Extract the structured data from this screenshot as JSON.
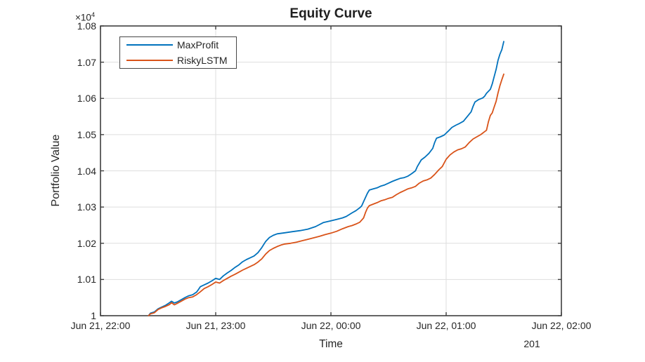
{
  "figure": {
    "background_color": "#ffffff",
    "axis_color": "#3f3f3f",
    "grid_color": "#dedede",
    "text_color": "#262626"
  },
  "chart_data": {
    "type": "line",
    "title": "Equity Curve",
    "xlabel": "Time",
    "ylabel": "Portfolio Value",
    "y_exponent_label": {
      "base": "×10",
      "power": "4"
    },
    "x_axis_secondary_label": "201",
    "x_unit": "minutes after Jun 21, 22:00",
    "xlim": [
      0,
      240
    ],
    "ylim": [
      10000,
      10800
    ],
    "grid": true,
    "x_ticks": {
      "positions": [
        0,
        60,
        120,
        180,
        240
      ],
      "labels": [
        "Jun 21, 22:00",
        "Jun 21, 23:00",
        "Jun 22, 00:00",
        "Jun 22, 01:00",
        "Jun 22, 02:00"
      ]
    },
    "y_ticks": {
      "values": [
        10000,
        10100,
        10200,
        10300,
        10400,
        10500,
        10600,
        10700,
        10800
      ],
      "labels": [
        "1",
        "1.01",
        "1.02",
        "1.03",
        "1.04",
        "1.05",
        "1.06",
        "1.07",
        "1.08"
      ]
    },
    "legend": {
      "position": "top-left",
      "entries": [
        {
          "label": "MaxProfit",
          "color": "#0072BD"
        },
        {
          "label": "RiskyLSTM",
          "color": "#D95319"
        }
      ]
    },
    "series": [
      {
        "name": "MaxProfit",
        "color": "#0072BD",
        "points": [
          [
            25,
            10000
          ],
          [
            26,
            10007
          ],
          [
            28,
            10010
          ],
          [
            30,
            10019
          ],
          [
            32,
            10024
          ],
          [
            34,
            10029
          ],
          [
            36,
            10036
          ],
          [
            37,
            10040
          ],
          [
            38.5,
            10035
          ],
          [
            40,
            10038
          ],
          [
            42,
            10044
          ],
          [
            44,
            10050
          ],
          [
            46,
            10055
          ],
          [
            48,
            10058
          ],
          [
            50,
            10065
          ],
          [
            51,
            10072
          ],
          [
            52,
            10080
          ],
          [
            54,
            10085
          ],
          [
            56,
            10090
          ],
          [
            58,
            10096
          ],
          [
            60,
            10103
          ],
          [
            62,
            10100
          ],
          [
            64,
            10110
          ],
          [
            66,
            10118
          ],
          [
            68,
            10125
          ],
          [
            70,
            10133
          ],
          [
            72,
            10140
          ],
          [
            74,
            10149
          ],
          [
            76,
            10155
          ],
          [
            78,
            10160
          ],
          [
            80,
            10165
          ],
          [
            82,
            10174
          ],
          [
            84,
            10188
          ],
          [
            86,
            10205
          ],
          [
            88,
            10216
          ],
          [
            90,
            10222
          ],
          [
            92,
            10226
          ],
          [
            96,
            10229
          ],
          [
            100,
            10232
          ],
          [
            104,
            10235
          ],
          [
            108,
            10239
          ],
          [
            112,
            10246
          ],
          [
            116,
            10257
          ],
          [
            120,
            10262
          ],
          [
            123,
            10266
          ],
          [
            126,
            10270
          ],
          [
            128,
            10274
          ],
          [
            131,
            10284
          ],
          [
            133,
            10290
          ],
          [
            135,
            10298
          ],
          [
            136,
            10303
          ],
          [
            137,
            10315
          ],
          [
            139,
            10338
          ],
          [
            140,
            10347
          ],
          [
            142,
            10350
          ],
          [
            144,
            10353
          ],
          [
            146,
            10358
          ],
          [
            148,
            10361
          ],
          [
            150,
            10366
          ],
          [
            152,
            10371
          ],
          [
            154,
            10375
          ],
          [
            156,
            10379
          ],
          [
            158,
            10381
          ],
          [
            160,
            10385
          ],
          [
            162,
            10392
          ],
          [
            164,
            10400
          ],
          [
            165,
            10412
          ],
          [
            167,
            10430
          ],
          [
            169,
            10438
          ],
          [
            171,
            10448
          ],
          [
            173,
            10462
          ],
          [
            174,
            10478
          ],
          [
            175,
            10490
          ],
          [
            177,
            10494
          ],
          [
            179,
            10499
          ],
          [
            181,
            10509
          ],
          [
            183,
            10520
          ],
          [
            185,
            10526
          ],
          [
            187,
            10531
          ],
          [
            189,
            10537
          ],
          [
            191,
            10550
          ],
          [
            193,
            10563
          ],
          [
            194,
            10578
          ],
          [
            195,
            10590
          ],
          [
            197,
            10597
          ],
          [
            199,
            10601
          ],
          [
            200,
            10606
          ],
          [
            201,
            10614
          ],
          [
            203,
            10625
          ],
          [
            204,
            10640
          ],
          [
            205,
            10660
          ],
          [
            206,
            10680
          ],
          [
            207,
            10705
          ],
          [
            208,
            10722
          ],
          [
            209,
            10735
          ],
          [
            210,
            10757
          ]
        ]
      },
      {
        "name": "RiskyLSTM",
        "color": "#D95319",
        "points": [
          [
            25,
            10000
          ],
          [
            26,
            10005
          ],
          [
            28,
            10008
          ],
          [
            30,
            10017
          ],
          [
            32,
            10022
          ],
          [
            34,
            10026
          ],
          [
            36,
            10031
          ],
          [
            37,
            10036
          ],
          [
            38.5,
            10030
          ],
          [
            40,
            10034
          ],
          [
            42,
            10040
          ],
          [
            44,
            10046
          ],
          [
            46,
            10050
          ],
          [
            48,
            10052
          ],
          [
            50,
            10058
          ],
          [
            52,
            10066
          ],
          [
            54,
            10075
          ],
          [
            56,
            10080
          ],
          [
            58,
            10086
          ],
          [
            60,
            10093
          ],
          [
            62,
            10090
          ],
          [
            64,
            10097
          ],
          [
            66,
            10103
          ],
          [
            68,
            10109
          ],
          [
            70,
            10114
          ],
          [
            72,
            10120
          ],
          [
            74,
            10126
          ],
          [
            76,
            10131
          ],
          [
            78,
            10136
          ],
          [
            80,
            10141
          ],
          [
            82,
            10148
          ],
          [
            84,
            10157
          ],
          [
            86,
            10170
          ],
          [
            88,
            10180
          ],
          [
            90,
            10186
          ],
          [
            92,
            10191
          ],
          [
            94,
            10195
          ],
          [
            96,
            10198
          ],
          [
            99,
            10200
          ],
          [
            102,
            10203
          ],
          [
            105,
            10207
          ],
          [
            108,
            10211
          ],
          [
            111,
            10215
          ],
          [
            114,
            10219
          ],
          [
            117,
            10224
          ],
          [
            120,
            10228
          ],
          [
            123,
            10233
          ],
          [
            126,
            10240
          ],
          [
            129,
            10246
          ],
          [
            131,
            10249
          ],
          [
            133,
            10253
          ],
          [
            135,
            10258
          ],
          [
            137,
            10270
          ],
          [
            138,
            10285
          ],
          [
            139,
            10297
          ],
          [
            140,
            10304
          ],
          [
            142,
            10308
          ],
          [
            144,
            10312
          ],
          [
            146,
            10317
          ],
          [
            148,
            10320
          ],
          [
            150,
            10324
          ],
          [
            152,
            10327
          ],
          [
            154,
            10334
          ],
          [
            156,
            10340
          ],
          [
            158,
            10345
          ],
          [
            160,
            10350
          ],
          [
            162,
            10353
          ],
          [
            164,
            10357
          ],
          [
            166,
            10366
          ],
          [
            168,
            10372
          ],
          [
            170,
            10375
          ],
          [
            172,
            10380
          ],
          [
            174,
            10390
          ],
          [
            176,
            10402
          ],
          [
            178,
            10412
          ],
          [
            180,
            10432
          ],
          [
            182,
            10444
          ],
          [
            184,
            10452
          ],
          [
            186,
            10458
          ],
          [
            188,
            10461
          ],
          [
            190,
            10466
          ],
          [
            192,
            10478
          ],
          [
            194,
            10488
          ],
          [
            196,
            10494
          ],
          [
            198,
            10500
          ],
          [
            200,
            10508
          ],
          [
            201,
            10512
          ],
          [
            202,
            10535
          ],
          [
            203,
            10553
          ],
          [
            204,
            10560
          ],
          [
            205,
            10576
          ],
          [
            206,
            10592
          ],
          [
            207,
            10615
          ],
          [
            208,
            10635
          ],
          [
            209,
            10652
          ],
          [
            210,
            10667
          ]
        ]
      }
    ]
  }
}
